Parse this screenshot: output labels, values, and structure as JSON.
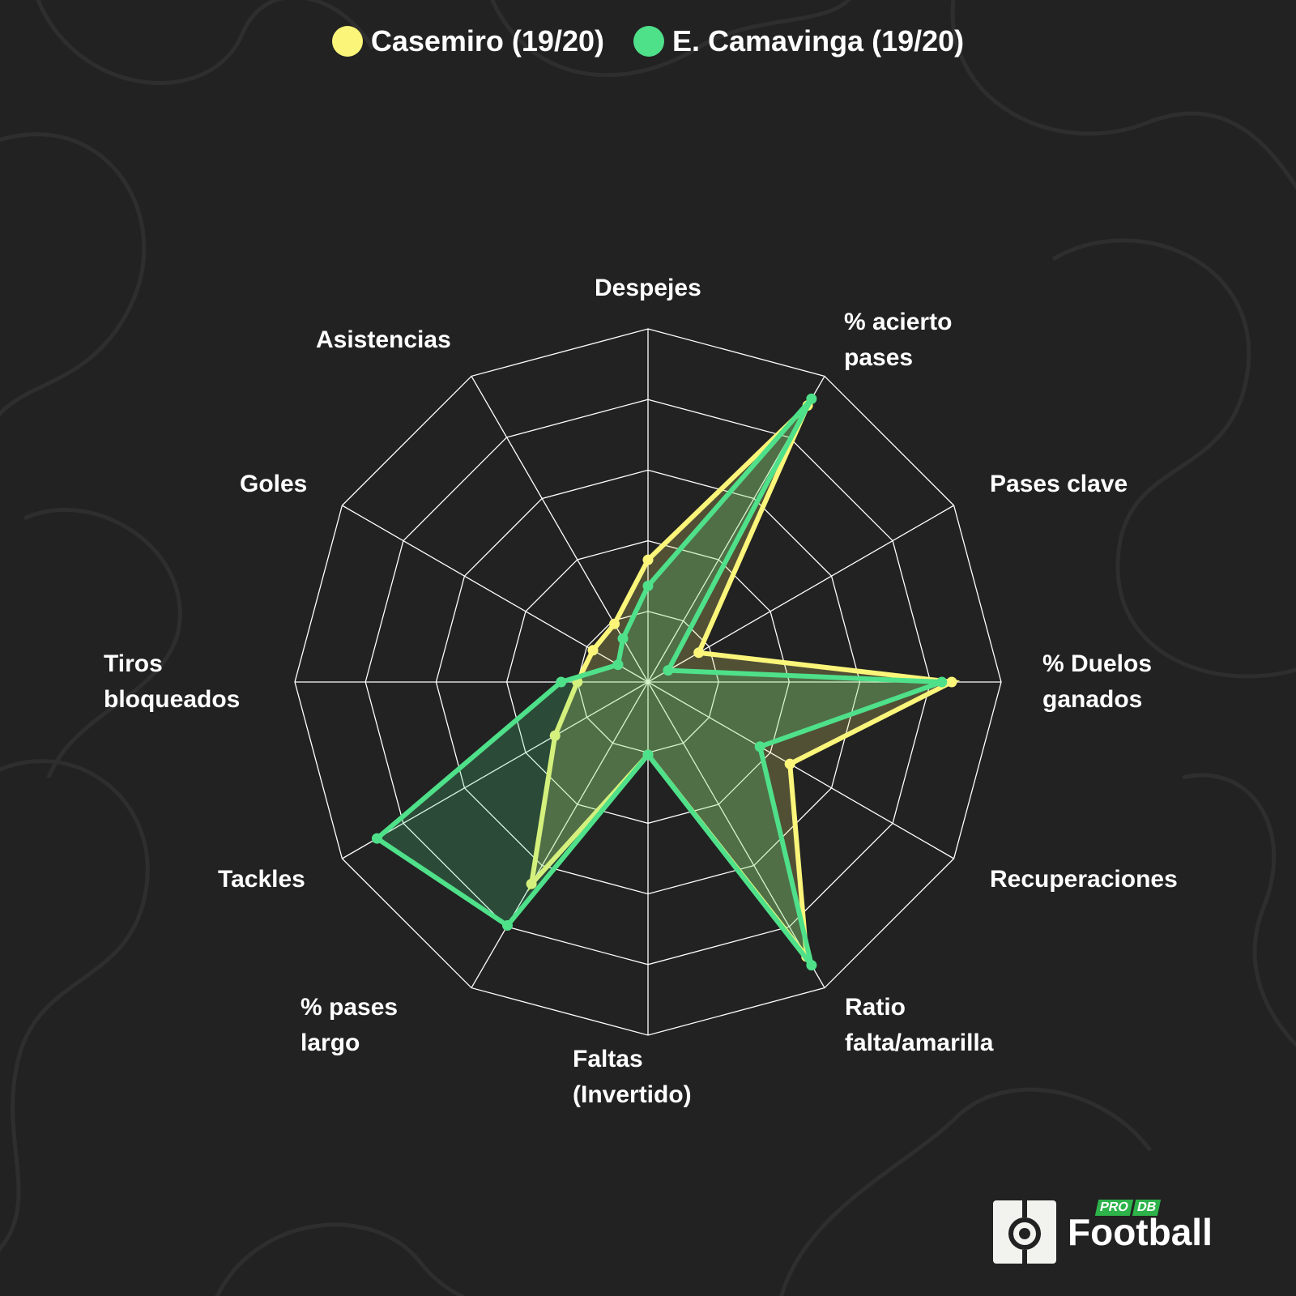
{
  "legend": [
    {
      "label": "Casemiro (19/20)",
      "color": "#fbf67a"
    },
    {
      "label": "E. Camavinga (19/20)",
      "color": "#4fe08a"
    }
  ],
  "chart_data": {
    "type": "radar",
    "axes": [
      "Despejes",
      "% acierto\npases",
      "Pases clave",
      "% Duelos\nganados",
      "Recuperaciones",
      "Ratio\nfalta/amarilla",
      "Faltas\n(Invertido)",
      "% pases\nlargo",
      "Tackles",
      "Tiros\nbloqueados",
      "Goles",
      "Asistencias"
    ],
    "rmax": 5,
    "rings": 5,
    "series": [
      {
        "name": "Casemiro (19/20)",
        "color": "#fbf67a",
        "values": [
          1.73,
          4.52,
          0.83,
          4.3,
          2.32,
          4.49,
          1.03,
          3.3,
          1.52,
          1.0,
          0.9,
          0.95
        ]
      },
      {
        "name": "E. Camavinga (19/20)",
        "color": "#4fe08a",
        "values": [
          1.36,
          4.63,
          0.33,
          4.16,
          1.83,
          4.63,
          1.03,
          3.98,
          4.43,
          1.23,
          0.49,
          0.71
        ]
      }
    ]
  },
  "logo": {
    "pro": "PRO",
    "db": "DB",
    "name": "Football"
  }
}
